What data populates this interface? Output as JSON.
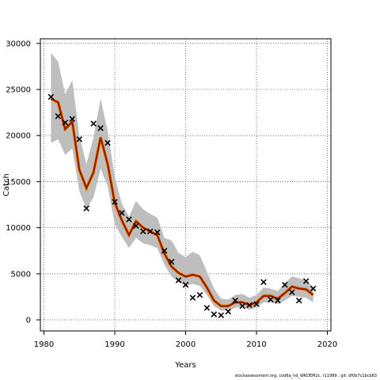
{
  "chart_data": {
    "type": "line",
    "xlabel": "Years",
    "ylabel": "Catch",
    "xlim": [
      1979.5,
      2020.5
    ],
    "ylim": [
      -1200,
      30500
    ],
    "x_ticks": [
      1980,
      1990,
      2000,
      2010,
      2020
    ],
    "y_ticks": [
      0,
      5000,
      10000,
      15000,
      20000,
      25000,
      30000
    ],
    "grid": true,
    "colors": {
      "band": "#bebebe",
      "line": "#8b1a00",
      "line_under": "#ff8c00",
      "tail_blue": "#1f3fbf",
      "tail_cyan": "#1fbfbf",
      "tail_yellow": "#e8e050",
      "tail_green": "#50c050"
    },
    "x": [
      1981,
      1982,
      1983,
      1984,
      1985,
      1986,
      1987,
      1988,
      1989,
      1990,
      1991,
      1992,
      1993,
      1994,
      1995,
      1996,
      1997,
      1998,
      1999,
      2000,
      2001,
      2002,
      2003,
      2004,
      2005,
      2006,
      2007,
      2008,
      2009,
      2010,
      2011,
      2012,
      2013,
      2014,
      2015,
      2016,
      2017,
      2018
    ],
    "series": [
      {
        "values": [
          24000,
          23600,
          20700,
          21500,
          16300,
          14300,
          16000,
          19800,
          16900,
          12700,
          10800,
          9200,
          10700,
          10000,
          9600,
          9200,
          7200,
          5800,
          5100,
          4700,
          4900,
          4700,
          3500,
          2100,
          1500,
          1500,
          1900,
          1900,
          1600,
          1900,
          2600,
          2600,
          2300,
          2900,
          3600,
          3400,
          3300,
          2700
        ],
        "lower": [
          19200,
          19600,
          17900,
          18600,
          14000,
          12000,
          13300,
          16400,
          14500,
          10400,
          9000,
          7800,
          8900,
          8300,
          8100,
          7800,
          6000,
          4700,
          4100,
          3700,
          3900,
          3700,
          2700,
          1500,
          1000,
          1000,
          1300,
          1400,
          1100,
          1400,
          1900,
          1900,
          1700,
          2100,
          2600,
          2500,
          2400,
          1900
        ],
        "upper": [
          29000,
          28000,
          24500,
          26000,
          20000,
          16900,
          19800,
          24000,
          20500,
          15500,
          12600,
          11200,
          12900,
          12000,
          11500,
          11100,
          8900,
          8600,
          7300,
          6800,
          7400,
          7000,
          5200,
          3400,
          2300,
          2200,
          2700,
          2800,
          2400,
          2700,
          3500,
          3400,
          3100,
          4000,
          4700,
          4500,
          4300,
          3500
        ]
      }
    ],
    "observed": {
      "marker": "x",
      "values": [
        24200,
        22100,
        21400,
        21800,
        19600,
        12100,
        21300,
        20800,
        19200,
        12800,
        11600,
        10900,
        10200,
        9600,
        9600,
        9500,
        7500,
        6300,
        4300,
        3800,
        2400,
        2700,
        1300,
        600,
        500,
        900,
        2100,
        1500,
        1600,
        1700,
        4100,
        2200,
        2100,
        3800,
        3000,
        2100,
        4200,
        3400
      ]
    }
  },
  "footer": "stockassessment.org, cod6a_hd_WKDEM2c, r11989 , git: df0b7c1bcb83"
}
